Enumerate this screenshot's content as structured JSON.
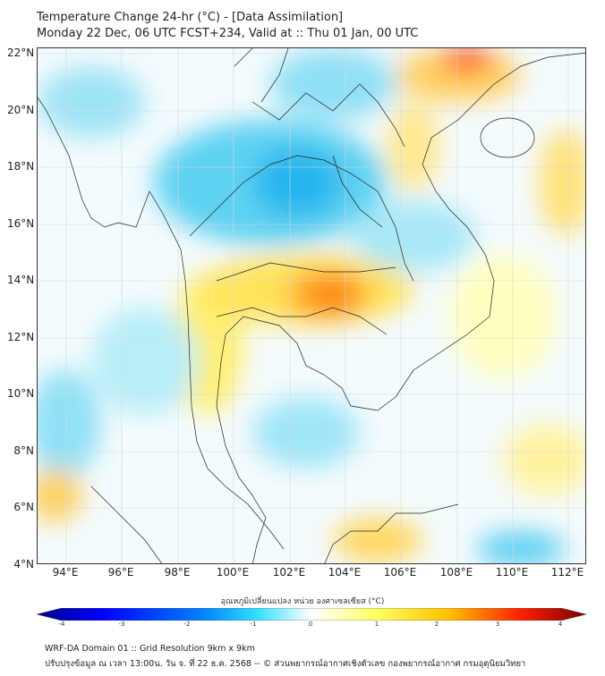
{
  "title": {
    "line1": "Temperature Change 24-hr (°C) - [Data Assimilation]",
    "line2": "Monday 22 Dec, 06 UTC FCST+234, Valid at :: Thu 01 Jan, 00 UTC"
  },
  "map": {
    "lat_labels": [
      "22°N",
      "20°N",
      "18°N",
      "16°N",
      "14°N",
      "12°N",
      "10°N",
      "8°N",
      "6°N",
      "4°N"
    ],
    "lon_labels": [
      "94°E",
      "96°E",
      "98°E",
      "100°E",
      "102°E",
      "104°E",
      "106°E",
      "108°E",
      "110°E",
      "112°E"
    ]
  },
  "colorbar": {
    "title": "อุณหภูมิเปลี่ยนแปลง หน่วย องศาเซลเซียส (°C)",
    "ticks": [
      "-4",
      "-3",
      "-2",
      "-1",
      "0",
      "1",
      "2",
      "3",
      "4"
    ],
    "range": [
      -4,
      4
    ],
    "colors": [
      "#00008b",
      "#0000ff",
      "#0080ff",
      "#30e0ff",
      "#ffffff",
      "#ffff60",
      "#ffc000",
      "#ff2000",
      "#7a0000"
    ]
  },
  "footer": {
    "line1": "WRF-DA Domain 01 :: Grid Resolution 9km x 9km",
    "line2": "ปรับปรุงข้อมูล ณ เวลา 13:00น. วัน จ. ที่ 22 ธ.ค. 2568 -- © ส่วนพยากรณ์อากาศเชิงตัวเลข กองพยากรณ์อากาศ กรมอุตุนิยมวิทยา"
  }
}
